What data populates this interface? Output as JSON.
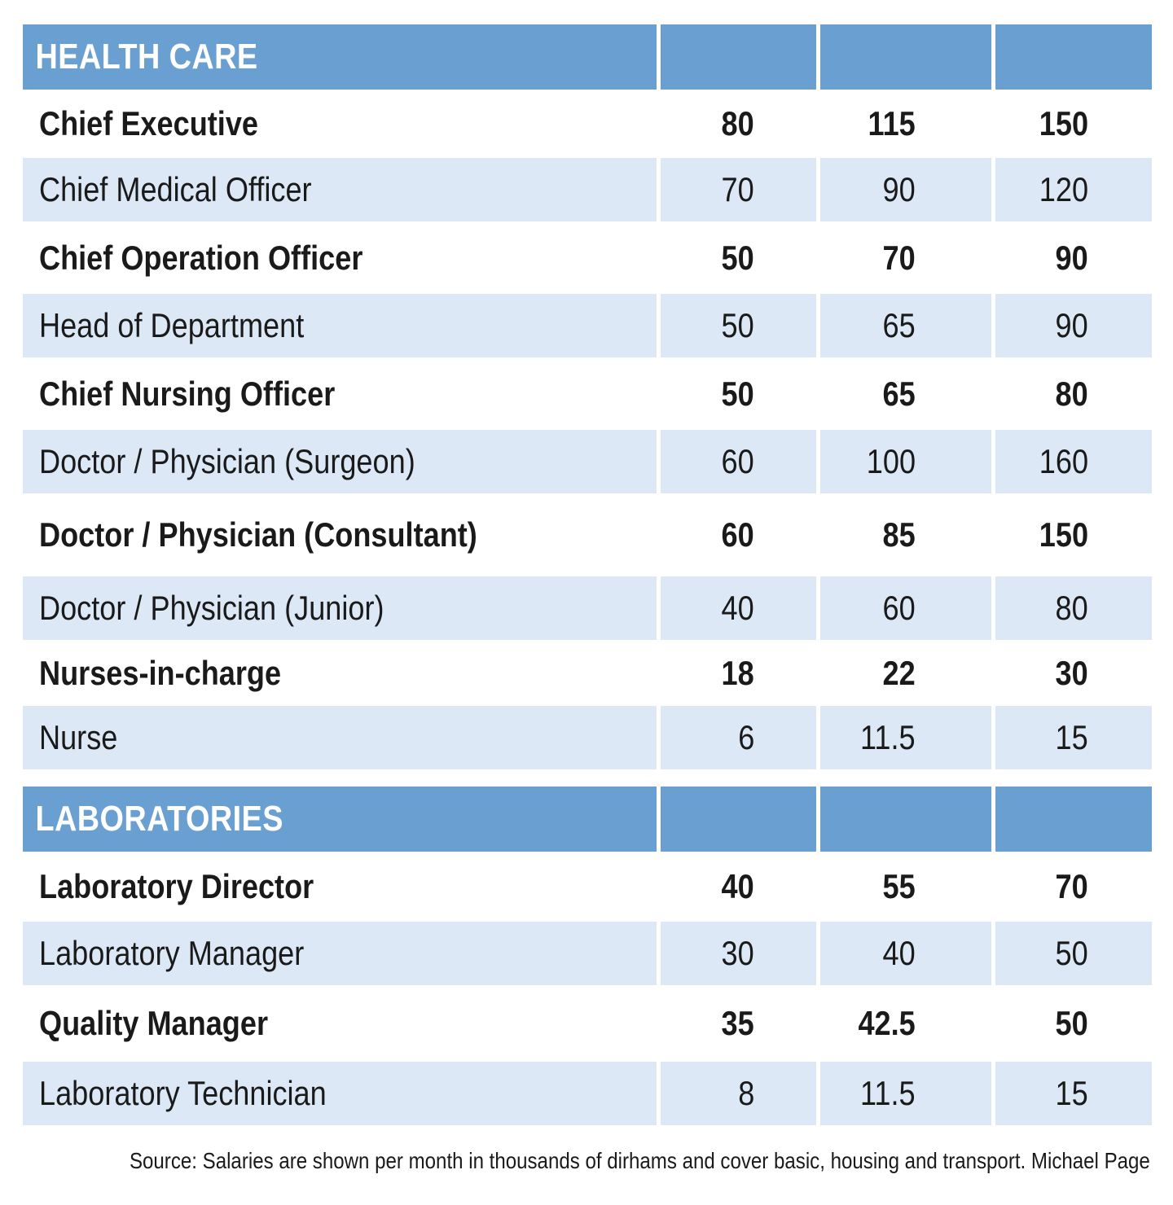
{
  "chart_data": {
    "type": "table",
    "sections": [
      {
        "title": "HEALTH CARE",
        "rows": [
          {
            "role": "Chief Executive",
            "values": [
              "80",
              "115",
              "150"
            ]
          },
          {
            "role": "Chief Medical Officer",
            "values": [
              "70",
              "90",
              "120"
            ]
          },
          {
            "role": "Chief Operation Officer",
            "values": [
              "50",
              "70",
              "90"
            ]
          },
          {
            "role": "Head of Department",
            "values": [
              "50",
              "65",
              "90"
            ]
          },
          {
            "role": "Chief Nursing Officer",
            "values": [
              "50",
              "65",
              "80"
            ]
          },
          {
            "role": "Doctor / Physician (Surgeon)",
            "values": [
              "60",
              "100",
              "160"
            ]
          },
          {
            "role": "Doctor / Physician (Consultant)",
            "values": [
              "60",
              "85",
              "150"
            ]
          },
          {
            "role": "Doctor / Physician (Junior)",
            "values": [
              "40",
              "60",
              "80"
            ]
          },
          {
            "role": "Nurses-in-charge",
            "values": [
              "18",
              "22",
              "30"
            ]
          },
          {
            "role": "Nurse",
            "values": [
              "6",
              "11.5",
              "15"
            ]
          }
        ]
      },
      {
        "title": "LABORATORIES",
        "rows": [
          {
            "role": "Laboratory Director",
            "values": [
              "40",
              "55",
              "70"
            ]
          },
          {
            "role": "Laboratory Manager",
            "values": [
              "30",
              "40",
              "50"
            ]
          },
          {
            "role": "Quality Manager",
            "values": [
              "35",
              "42.5",
              "50"
            ]
          },
          {
            "role": "Laboratory Technician",
            "values": [
              "8",
              "11.5",
              "15"
            ]
          }
        ]
      }
    ],
    "source": "Source: Salaries are shown per month in thousands of dirhams and cover basic, housing and transport. Michael Page"
  },
  "colors": {
    "header_blue": "#6a9fd2",
    "row_shade": "#dce8f5",
    "text": "#1a1a1a"
  }
}
